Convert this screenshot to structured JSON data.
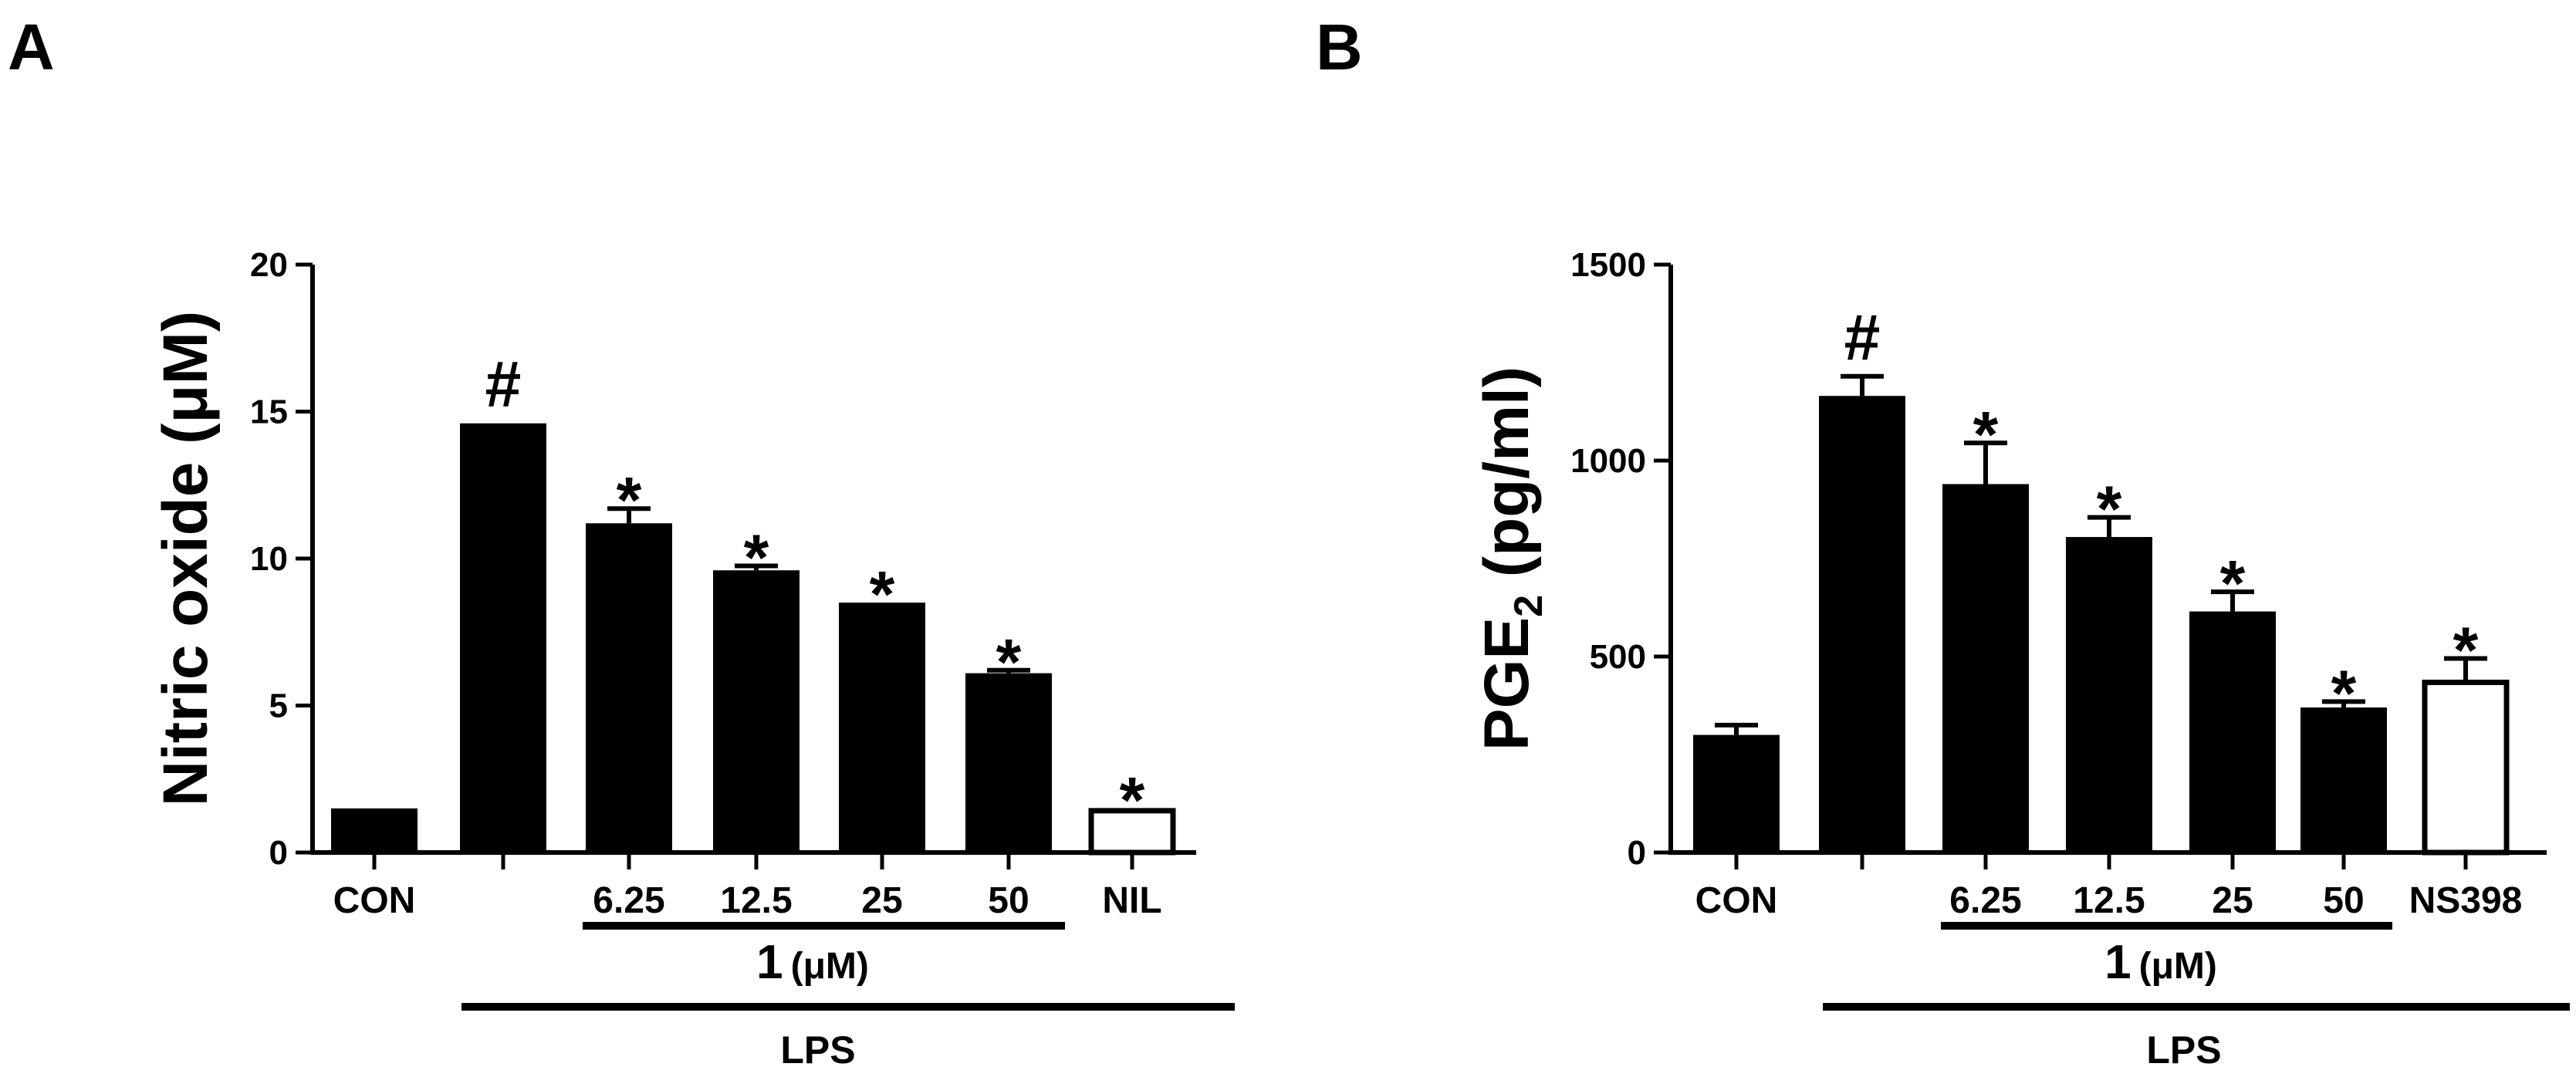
{
  "chart_data": [
    {
      "panel": "A",
      "type": "bar",
      "ylabel": "Nitric oxide (μM)",
      "ylim": [
        0,
        20
      ],
      "yticks": [
        0,
        5,
        10,
        15,
        20
      ],
      "categories": [
        "CON",
        "",
        "6.25",
        "12.5",
        "25",
        "50",
        "NIL"
      ],
      "values": [
        1.5,
        14.6,
        11.2,
        9.6,
        8.5,
        6.1,
        1.5
      ],
      "errors": [
        0.0,
        0.0,
        0.5,
        0.15,
        0.0,
        0.1,
        0.0
      ],
      "filled": [
        true,
        true,
        true,
        true,
        true,
        true,
        false
      ],
      "annotations": [
        "",
        "#",
        "*",
        "*",
        "*",
        "*",
        "*"
      ],
      "compound_label": "1",
      "compound_unit": "(μM)",
      "stimulus_label": "LPS"
    },
    {
      "panel": "B",
      "type": "bar",
      "ylabel_main": "PGE",
      "ylabel_sub": "2",
      "ylabel_rest": " (pg/ml)",
      "ylim": [
        0,
        1500
      ],
      "yticks": [
        0,
        500,
        1000,
        1500
      ],
      "categories": [
        "CON",
        "",
        "6.25",
        "12.5",
        "25",
        "50",
        "NS398"
      ],
      "values": [
        300,
        1165,
        940,
        805,
        615,
        370,
        440
      ],
      "errors": [
        25,
        50,
        105,
        50,
        50,
        15,
        55
      ],
      "filled": [
        true,
        true,
        true,
        true,
        true,
        true,
        false
      ],
      "annotations": [
        "",
        "#",
        "*",
        "*",
        "*",
        "*",
        "*"
      ],
      "compound_label": "1",
      "compound_unit": "(μM)",
      "stimulus_label": "LPS"
    }
  ]
}
